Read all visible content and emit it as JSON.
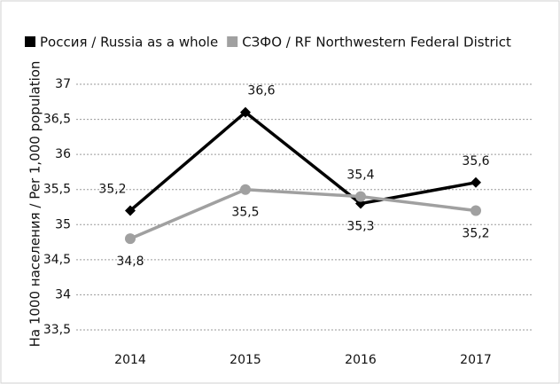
{
  "chart_data": {
    "type": "line",
    "y_label": "На 1000 населения / Per 1,000 population",
    "categories": [
      "2014",
      "2015",
      "2016",
      "2017"
    ],
    "series": [
      {
        "name": "Россия / Russia as a whole",
        "color": "#000000",
        "marker": "diamond",
        "values": [
          35.2,
          36.6,
          35.3,
          35.6
        ],
        "value_labels": [
          "35,2",
          "36,6",
          "35,3",
          "35,6"
        ]
      },
      {
        "name": "СЗФО / RF Northwestern Federal District",
        "color": "#a0a0a0",
        "marker": "circle",
        "values": [
          34.8,
          35.5,
          35.4,
          35.2
        ],
        "value_labels": [
          "34,8",
          "35,5",
          "35,4",
          "35,2"
        ]
      }
    ],
    "ylim": [
      33.5,
      37
    ],
    "yticks": [
      {
        "value": 33.5,
        "label": "33,5"
      },
      34,
      {
        "value": 34.5,
        "label": "34,5"
      },
      35,
      {
        "value": 35.5,
        "label": "35,5"
      },
      36,
      {
        "value": 36.5,
        "label": "36,5"
      },
      37
    ],
    "grid": true,
    "legend": "top"
  }
}
